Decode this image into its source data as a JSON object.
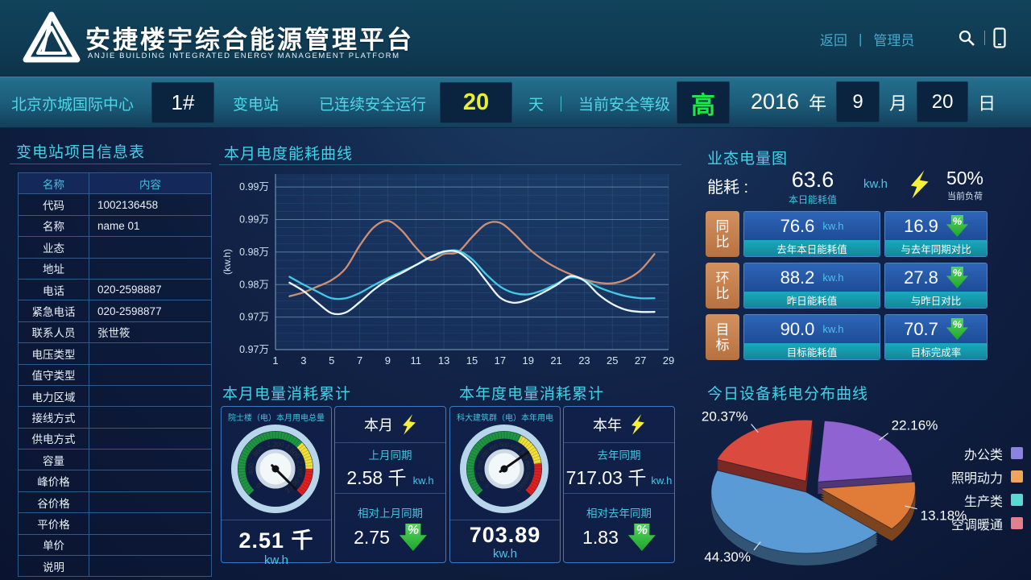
{
  "header": {
    "title": "安捷楼宇综合能源管理平台",
    "subtitle": "ANJIE  BUILDING INTEGRATED ENERGY MANAGEMENT PLATFORM",
    "back_label": "返回",
    "divider": "|",
    "user_label": "管理员"
  },
  "topbar": {
    "site_name": "北京亦城国际中心",
    "station_no": "1#",
    "station_label": "变电站",
    "safe_run_label": "已连续安全运行",
    "safe_days": "20",
    "days_unit": "天",
    "divider": "｜",
    "safety_level_label": "当前安全等级",
    "safety_level": "高",
    "date": {
      "year": "2016",
      "year_unit": "年",
      "month": "9",
      "month_unit": "月",
      "day": "20",
      "day_unit": "日"
    }
  },
  "info_table": {
    "title": "变电站项目信息表",
    "headers": [
      "名称",
      "内容"
    ],
    "rows": [
      [
        "代码",
        "1002136458"
      ],
      [
        "名称",
        "name 01"
      ],
      [
        "业态",
        ""
      ],
      [
        "地址",
        ""
      ],
      [
        "电话",
        "020-2598887"
      ],
      [
        "紧急电话",
        "020-2598877"
      ],
      [
        "联系人员",
        "张世筱"
      ],
      [
        "电压类型",
        ""
      ],
      [
        "值守类型",
        ""
      ],
      [
        "电力区域",
        ""
      ],
      [
        "接线方式",
        ""
      ],
      [
        "供电方式",
        ""
      ],
      [
        "容量",
        ""
      ],
      [
        "峰价格",
        ""
      ],
      [
        "谷价格",
        ""
      ],
      [
        "平价格",
        ""
      ],
      [
        "单价",
        ""
      ],
      [
        "说明",
        ""
      ]
    ]
  },
  "energy_panel": {
    "title": "业态电量图",
    "summary": {
      "label": "能耗 :",
      "value": "63.6",
      "value_caption": "本日能耗值",
      "unit": "kw.h",
      "load_pct": "50%",
      "load_caption": "当前负荷"
    },
    "rows": [
      {
        "tag": "同比",
        "value": "76.6",
        "unit": "kw.h",
        "value_caption": "去年本日能耗值",
        "pct": "16.9",
        "pct_caption": "与去年同期对比"
      },
      {
        "tag": "环比",
        "value": "88.2",
        "unit": "kw.h",
        "value_caption": "昨日能耗值",
        "pct": "27.8",
        "pct_caption": "与昨日对比"
      },
      {
        "tag": "目标",
        "value": "90.0",
        "unit": "kw.h",
        "value_caption": "目标能耗值",
        "pct": "70.7",
        "pct_caption": "目标完成率"
      }
    ]
  },
  "month_panel": {
    "title": "本月电量消耗累计",
    "reading": "2.51 千",
    "reading_unit": "kw.h",
    "period_label": "本月",
    "compare_label": "上月同期",
    "compare_value": "2.58 千",
    "compare_unit": "kw.h",
    "relative_label": "相对上月同期",
    "relative_value": "2.75"
  },
  "year_panel": {
    "title": "本年度电量消耗累计",
    "reading": "703.89",
    "reading_unit": "kw.h",
    "period_label": "本年",
    "compare_label": "去年同期",
    "compare_value": "717.03 千",
    "compare_unit": "kw.h",
    "relative_label": "相对去年同期",
    "relative_value": "1.83"
  },
  "chart_data": [
    {
      "id": "monthly-energy-curve",
      "type": "line",
      "title": "本月电度能耗曲线",
      "xlabel": "",
      "ylabel": "(kw.h)",
      "xlim": [
        1,
        29
      ],
      "ylim": [
        0.965,
        0.992
      ],
      "x_tick_labels": [
        "1",
        "3",
        "5",
        "7",
        "9",
        "11",
        "13",
        "15",
        "17",
        "19",
        "21",
        "23",
        "25",
        "27",
        "29"
      ],
      "y_ticks": [
        {
          "value": 0.965,
          "label": "0.97万"
        },
        {
          "value": 0.97,
          "label": "0.97万"
        },
        {
          "value": 0.975,
          "label": "0.98万"
        },
        {
          "value": 0.98,
          "label": "0.98万"
        },
        {
          "value": 0.985,
          "label": "0.99万"
        },
        {
          "value": 0.99,
          "label": "0.99万"
        }
      ],
      "grid": true,
      "x": [
        2,
        3,
        4,
        5,
        6,
        7,
        8,
        9,
        10,
        11,
        12,
        13,
        14,
        15,
        16,
        17,
        18,
        19,
        20,
        21,
        22,
        23,
        24,
        25,
        26,
        27,
        28
      ],
      "series": [
        {
          "name": "curve-orange",
          "color": "#cf8f72",
          "y": [
            0.9732,
            0.9738,
            0.9747,
            0.9757,
            0.9775,
            0.981,
            0.9838,
            0.9848,
            0.9833,
            0.9807,
            0.9788,
            0.9797,
            0.98,
            0.9823,
            0.9843,
            0.9845,
            0.9828,
            0.9806,
            0.9789,
            0.9776,
            0.9766,
            0.9758,
            0.9753,
            0.9752,
            0.9758,
            0.9772,
            0.9797
          ]
        },
        {
          "name": "curve-cyan",
          "color": "#45c8e8",
          "y": [
            0.9762,
            0.975,
            0.9739,
            0.9729,
            0.9729,
            0.9737,
            0.9749,
            0.976,
            0.977,
            0.978,
            0.9791,
            0.98,
            0.9802,
            0.9789,
            0.9766,
            0.9747,
            0.9737,
            0.9735,
            0.9741,
            0.9751,
            0.9761,
            0.9757,
            0.9746,
            0.9738,
            0.9732,
            0.9729,
            0.9729
          ]
        },
        {
          "name": "curve-white",
          "color": "#ebf5fb",
          "y": [
            0.9753,
            0.974,
            0.9722,
            0.9706,
            0.9707,
            0.9723,
            0.9742,
            0.9757,
            0.9768,
            0.978,
            0.9792,
            0.9801,
            0.98,
            0.9783,
            0.9756,
            0.973,
            0.9722,
            0.9727,
            0.9737,
            0.9749,
            0.9763,
            0.9756,
            0.9735,
            0.972,
            0.9711,
            0.9708,
            0.9708
          ]
        }
      ]
    },
    {
      "id": "month-gauge",
      "type": "gauge",
      "title": "院士楼（电）本月用电总量",
      "max": 2400,
      "value": 2510,
      "tick_labels": [
        "0",
        "400",
        "800",
        "1,200",
        "1,600",
        "2,000",
        "2,400"
      ],
      "zones": [
        {
          "to": 1600,
          "color": "#1f9643"
        },
        {
          "to": 2000,
          "color": "#f2e03a"
        },
        {
          "to": 2400,
          "color": "#e02020"
        }
      ]
    },
    {
      "id": "year-gauge",
      "type": "gauge",
      "title": "科大建筑群（电）本年用电",
      "max": 1000,
      "value": 703.89,
      "tick_labels": [
        "0",
        "100",
        "200",
        "300",
        "400",
        "500",
        "600",
        "700",
        "800",
        "900",
        "1,000"
      ],
      "zones": [
        {
          "to": 600,
          "color": "#1f9643"
        },
        {
          "to": 800,
          "color": "#f2e03a"
        },
        {
          "to": 1000,
          "color": "#e02020"
        }
      ]
    },
    {
      "id": "device-power-pie",
      "type": "pie",
      "title": "今日设备耗电分布曲线",
      "start_angle": -86,
      "legend_position": "right",
      "slices": [
        {
          "label": "办公类",
          "pct": 22.16,
          "color": "#8f63d2",
          "legend_color": "#8c82e0"
        },
        {
          "label": "照明动力",
          "pct": 13.18,
          "color": "#e07c38",
          "legend_color": "#f0a55c"
        },
        {
          "label": "生产类",
          "pct": 44.3,
          "color": "#5b9bd5",
          "legend_color": "#5cd8d2"
        },
        {
          "label": "空调暖通",
          "pct": 20.37,
          "color": "#db4a3f",
          "legend_color": "#e57f8c"
        }
      ]
    }
  ]
}
